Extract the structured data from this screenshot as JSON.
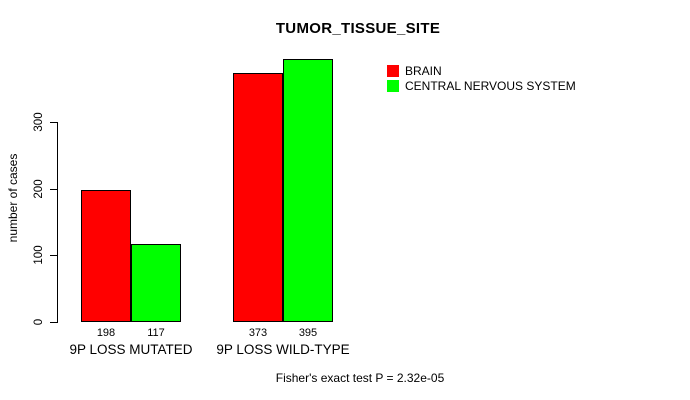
{
  "chart_data": {
    "type": "bar",
    "title": "TUMOR_TISSUE_SITE",
    "xlabel": "",
    "ylabel": "number of cases",
    "categories": [
      "9P LOSS MUTATED",
      "9P LOSS WILD-TYPE"
    ],
    "series": [
      {
        "name": "BRAIN",
        "color": "#ff0000",
        "values": [
          198,
          373
        ]
      },
      {
        "name": "CENTRAL NERVOUS SYSTEM",
        "color": "#00ff00",
        "values": [
          117,
          395
        ]
      }
    ],
    "yticks": [
      0,
      100,
      200,
      300
    ],
    "ylim": [
      0,
      300
    ],
    "grid": false,
    "legend_position": "top-right",
    "annotation": "Fisher's exact test P = 2.32e-05"
  },
  "colors": {
    "background": "#ffffff",
    "text": "#000000",
    "axis": "#000000",
    "bar_border": "#000000"
  }
}
